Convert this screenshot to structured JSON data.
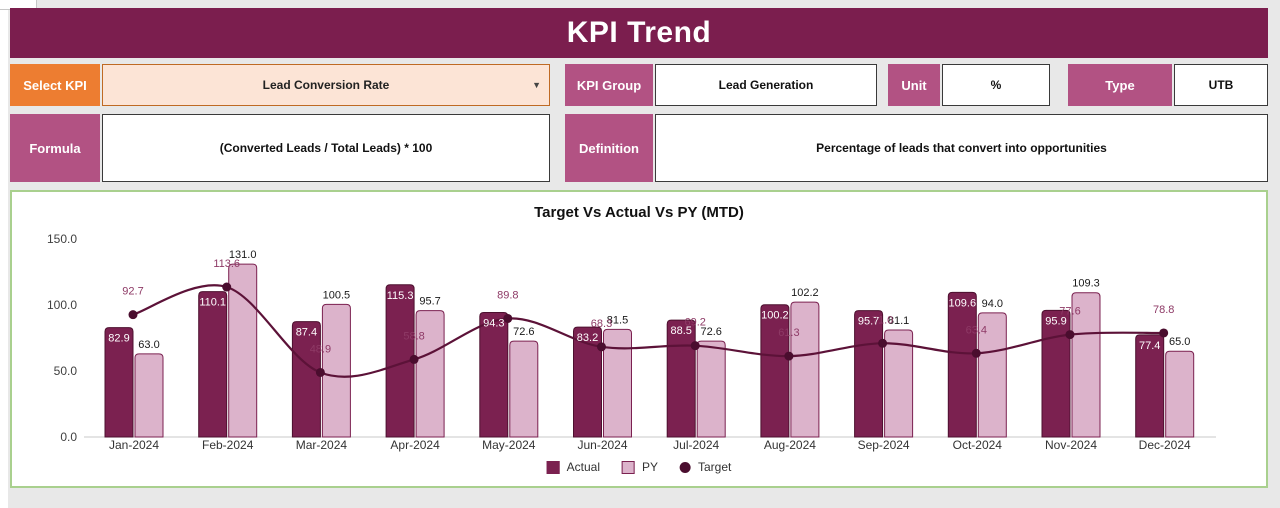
{
  "header": {
    "title": "KPI Trend"
  },
  "controls": {
    "select_kpi": {
      "label": "Select KPI",
      "value": "Lead Conversion Rate"
    },
    "kpi_group": {
      "label": "KPI Group",
      "value": "Lead Generation"
    },
    "unit": {
      "label": "Unit",
      "value": "%"
    },
    "type": {
      "label": "Type",
      "value": "UTB"
    },
    "formula": {
      "label": "Formula",
      "value": "(Converted Leads / Total Leads) * 100"
    },
    "definition": {
      "label": "Definition",
      "value": "Percentage of leads that convert into opportunities"
    }
  },
  "chart_data": {
    "type": "bar",
    "subtype": "grouped-bars-with-line-overlay",
    "title": "Target Vs Actual Vs PY (MTD)",
    "categories": [
      "Jan-2024",
      "Feb-2024",
      "Mar-2024",
      "Apr-2024",
      "May-2024",
      "Jun-2024",
      "Jul-2024",
      "Aug-2024",
      "Sep-2024",
      "Oct-2024",
      "Nov-2024",
      "Dec-2024"
    ],
    "series": [
      {
        "name": "Actual",
        "type": "bar",
        "color": "#7b2150",
        "values": [
          82.9,
          110.1,
          87.4,
          115.3,
          94.3,
          83.2,
          88.5,
          100.2,
          95.7,
          109.6,
          95.9,
          77.4
        ]
      },
      {
        "name": "PY",
        "type": "bar",
        "color": "#dcb3cb",
        "values": [
          63.0,
          131.0,
          100.5,
          95.7,
          72.6,
          81.5,
          72.6,
          102.2,
          81.1,
          94.0,
          109.3,
          65.0
        ]
      },
      {
        "name": "Target",
        "type": "line",
        "color": "#5c1238",
        "values": [
          92.7,
          113.6,
          48.9,
          58.8,
          89.8,
          68.3,
          69.2,
          61.3,
          71.0,
          63.4,
          77.6,
          78.8
        ]
      }
    ],
    "ylim": [
      0,
      150
    ],
    "yticks": [
      0,
      50,
      100,
      150
    ],
    "grid": false,
    "legend_position": "bottom"
  },
  "colors": {
    "header_bg": "#7b1e4e",
    "accent_orange": "#ed7d31",
    "dropdown_bg": "#fce4d6",
    "label_plum": "#b25283",
    "chart_border": "#a9d08e",
    "canvas_bg": "#e8e8e8",
    "actual_bar": "#7b2150",
    "py_bar": "#dcb3cb",
    "target_line": "#5c1238"
  }
}
